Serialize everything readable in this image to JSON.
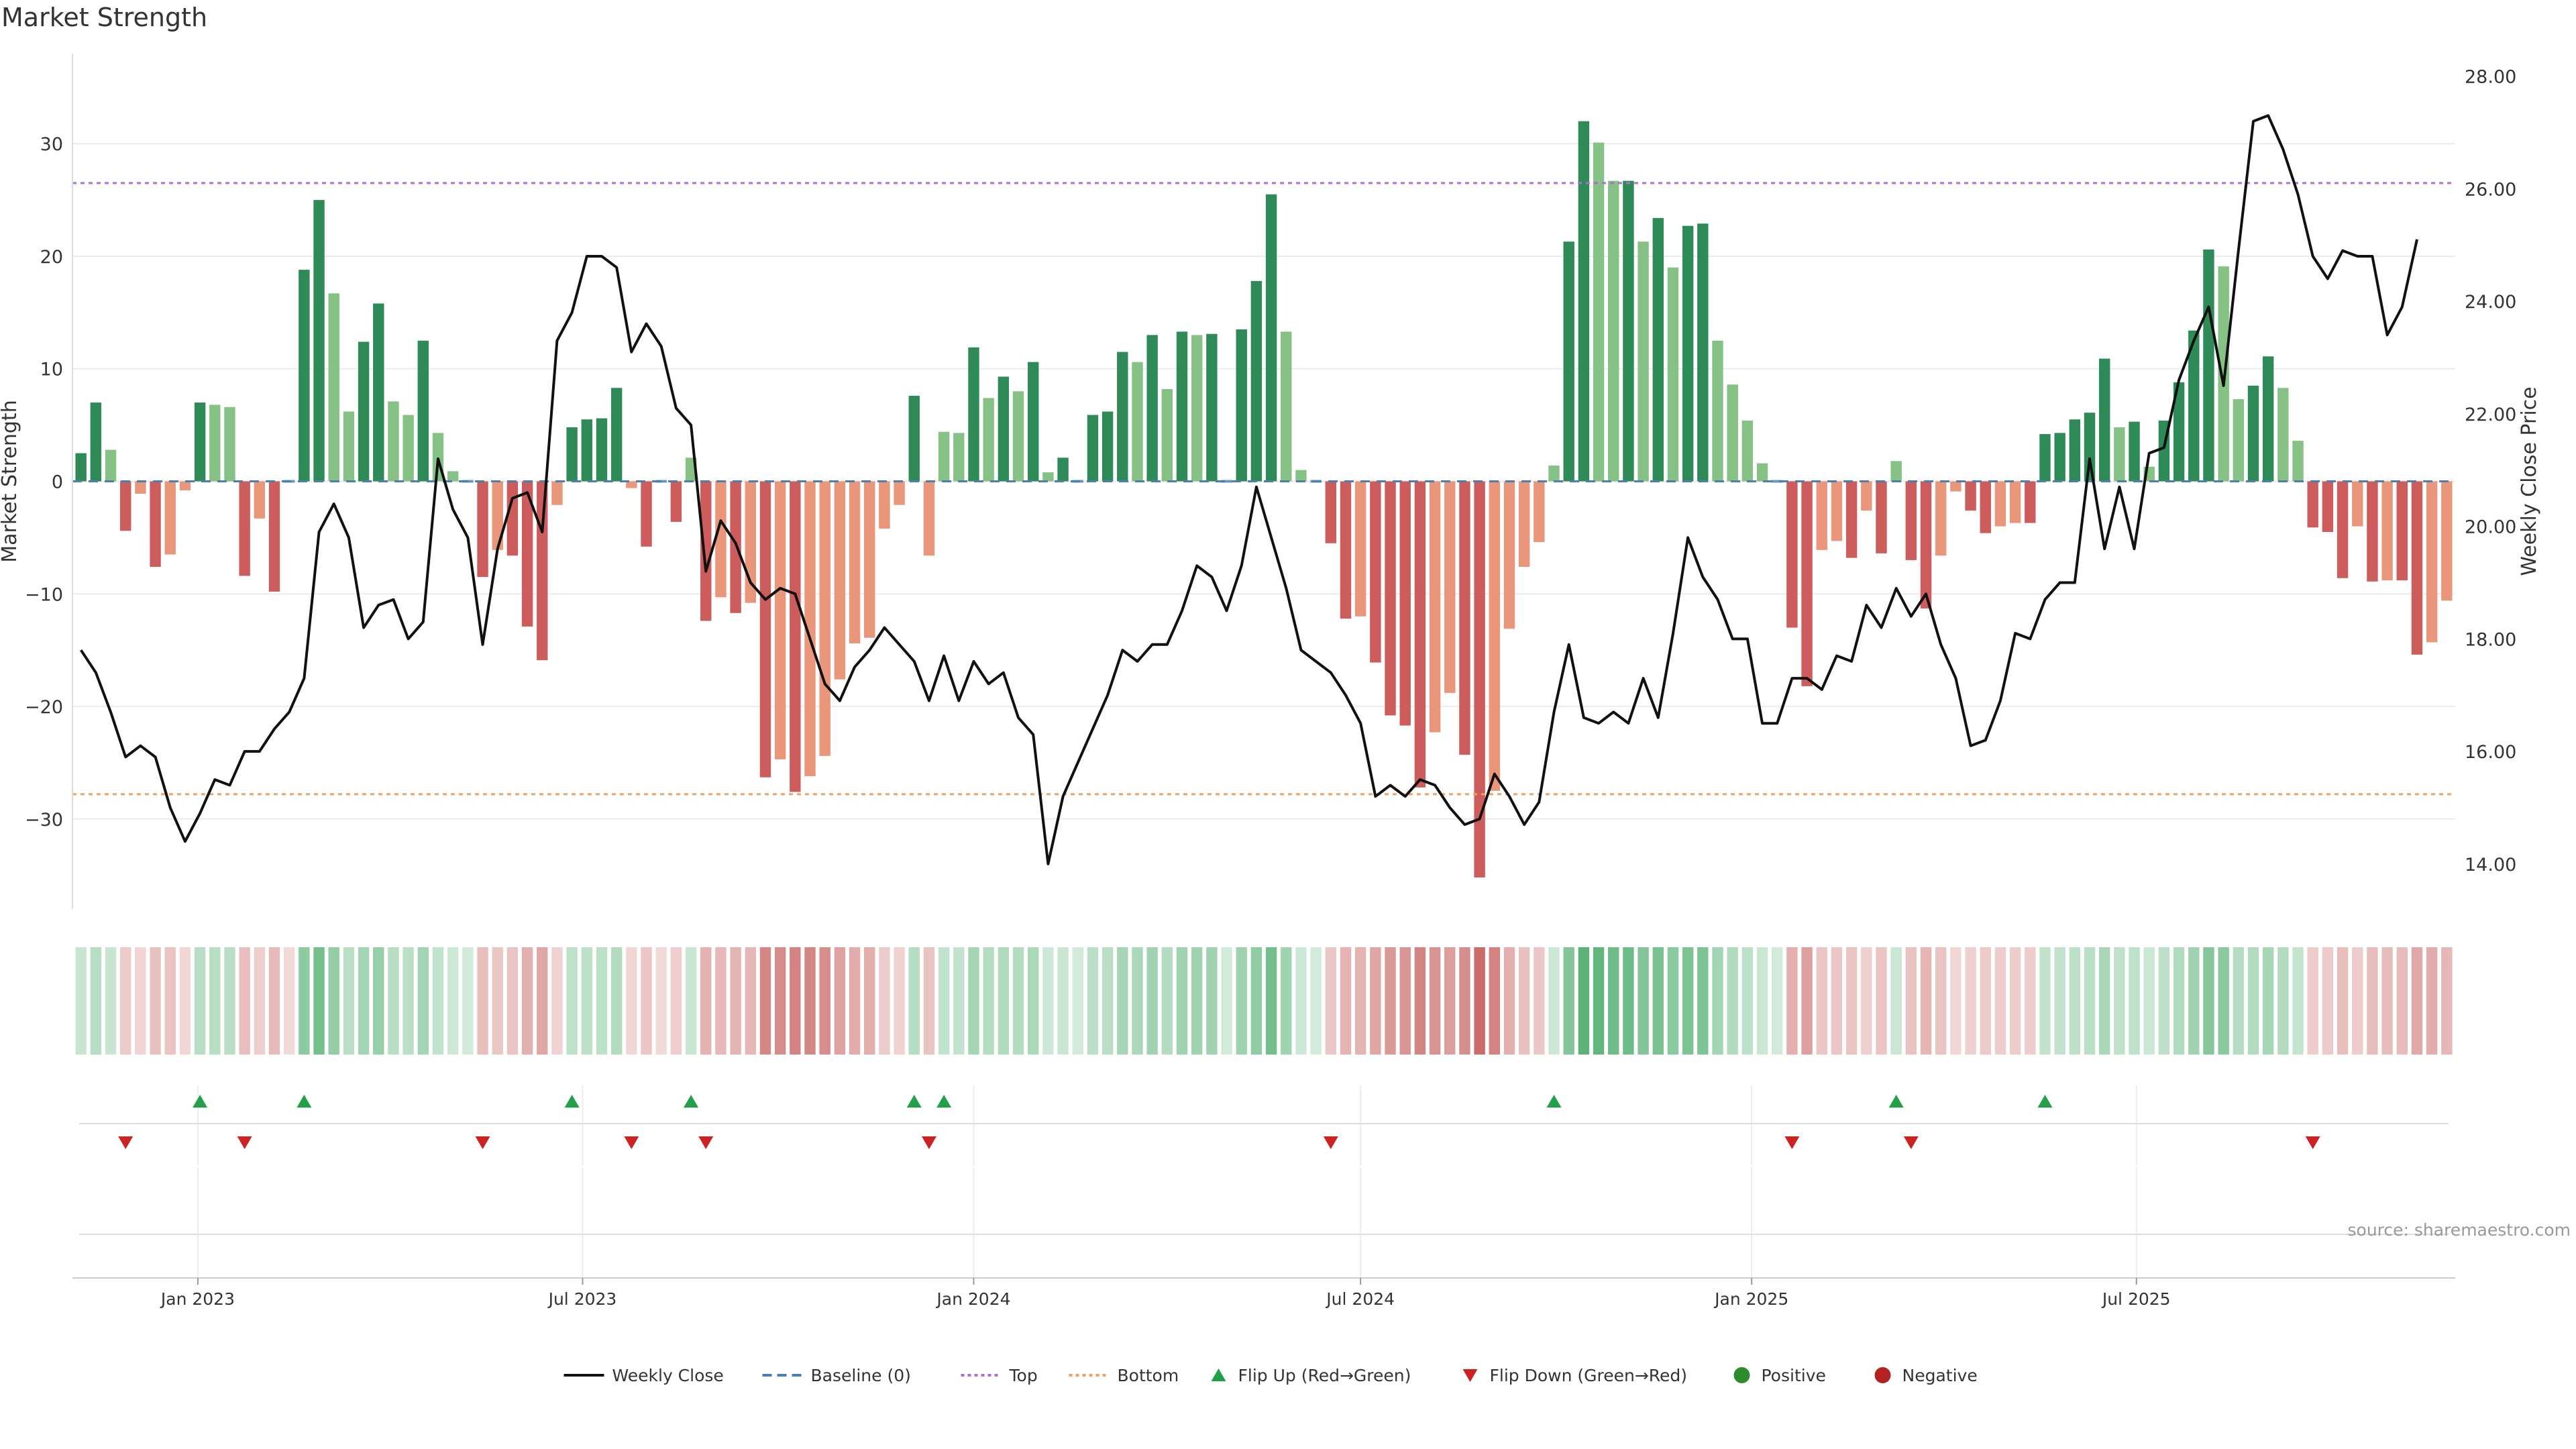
{
  "chart_data": {
    "type": "bar",
    "title": "Market Strength",
    "ylabel": "Market Strength",
    "y2label": "Weekly Close Price",
    "ylim": [
      -38,
      38
    ],
    "y2lim": [
      13.2,
      28.4
    ],
    "yticks": [
      30,
      20,
      10,
      0,
      -10,
      -20,
      -30
    ],
    "y2ticks": [
      "28.00",
      "26.00",
      "24.00",
      "22.00",
      "20.00",
      "18.00",
      "16.00",
      "14.00"
    ],
    "xticks": [
      "Jan 2023",
      "Jul 2023",
      "Jan 2024",
      "Jul 2024",
      "Jan 2025",
      "Jul 2025"
    ],
    "xtick_dates": [
      "2023-01-01",
      "2023-07-01",
      "2024-01-01",
      "2024-07-01",
      "2025-01-01",
      "2025-07-01"
    ],
    "start_date": "2022-11-07",
    "top_line": 26.5,
    "bottom_line": -27.8,
    "strength": [
      2.5,
      7,
      2.8,
      -4.4,
      -1.1,
      -7.6,
      -6.5,
      -0.8,
      7,
      6.8,
      6.6,
      -8.4,
      -3.3,
      -9.8,
      0,
      18.8,
      25,
      16.7,
      6.2,
      12.4,
      15.8,
      7.1,
      5.9,
      12.5,
      4.3,
      0.9,
      0,
      -8.5,
      -6.1,
      -6.6,
      -12.9,
      -15.9,
      -2.1,
      4.8,
      5.5,
      5.6,
      8.3,
      -0.6,
      -5.8,
      0,
      -3.6,
      2.1,
      -12.4,
      -10.3,
      -11.7,
      -10.8,
      -26.3,
      -24.7,
      -27.6,
      -26.2,
      -24.4,
      -17.6,
      -14.4,
      -13.9,
      -4.2,
      -2.1,
      7.6,
      -6.6,
      4.4,
      4.3,
      11.9,
      7.4,
      9.3,
      8,
      10.6,
      0.8,
      2.1,
      0,
      5.9,
      6.2,
      11.5,
      10.6,
      13,
      8.2,
      13.3,
      13,
      13.1,
      0,
      13.5,
      17.8,
      25.5,
      13.3,
      1,
      0,
      -5.5,
      -12.2,
      -12,
      -16.1,
      -20.8,
      -21.7,
      -27.2,
      -22.3,
      -18.8,
      -24.3,
      -35.2,
      -27.5,
      -13.1,
      -7.6,
      -5.4,
      1.4,
      21.3,
      32,
      30.1,
      26.7,
      26.7,
      21.3,
      23.4,
      19,
      22.7,
      22.9,
      12.5,
      8.6,
      5.4,
      1.6,
      0,
      -13,
      -18.2,
      -6.1,
      -5.3,
      -6.8,
      -2.6,
      -6.4,
      1.8,
      -7,
      -11.3,
      -6.6,
      -0.9,
      -2.6,
      -4.6,
      -4,
      -3.7,
      -3.7,
      4.2,
      4.3,
      5.5,
      6.1,
      10.9,
      4.8,
      5.3,
      1.3,
      5.4,
      8.8,
      13.4,
      20.6,
      19.1,
      7.3,
      8.5,
      11.1,
      8.3,
      3.6,
      -4.1,
      -4.5,
      -8.6,
      -4,
      -8.9,
      -8.8,
      -8.8,
      -15.4,
      -14.3,
      -10.6
    ],
    "price": [
      17.8,
      17.4,
      16.7,
      15.9,
      16.1,
      15.9,
      15.0,
      14.4,
      14.9,
      15.5,
      15.4,
      16.0,
      16.0,
      16.4,
      16.7,
      17.3,
      19.9,
      20.4,
      19.8,
      18.2,
      18.6,
      18.7,
      18.0,
      18.3,
      21.2,
      20.3,
      19.8,
      17.9,
      19.6,
      20.5,
      20.6,
      19.9,
      23.3,
      23.8,
      24.8,
      24.8,
      24.6,
      23.1,
      23.6,
      23.2,
      22.1,
      21.8,
      19.2,
      20.1,
      19.7,
      19.0,
      18.7,
      18.9,
      18.8,
      18.0,
      17.2,
      16.9,
      17.5,
      17.8,
      18.2,
      17.9,
      17.6,
      16.9,
      17.7,
      16.9,
      17.6,
      17.2,
      17.4,
      16.6,
      16.3,
      14.0,
      15.2,
      15.8,
      16.4,
      17.0,
      17.8,
      17.6,
      17.9,
      17.9,
      18.5,
      19.3,
      19.1,
      18.5,
      19.3,
      20.7,
      19.8,
      18.9,
      17.8,
      17.6,
      17.4,
      17.0,
      16.5,
      15.2,
      15.4,
      15.2,
      15.5,
      15.4,
      15.0,
      14.7,
      14.8,
      15.6,
      15.2,
      14.7,
      15.1,
      16.7,
      17.9,
      16.6,
      16.5,
      16.7,
      16.5,
      17.3,
      16.6,
      18.1,
      19.8,
      19.1,
      18.7,
      18.0,
      18.0,
      16.5,
      16.5,
      17.3,
      17.3,
      17.1,
      17.7,
      17.6,
      18.6,
      18.2,
      18.9,
      18.4,
      18.8,
      17.9,
      17.3,
      16.1,
      16.2,
      16.9,
      18.1,
      18.0,
      18.7,
      19.0,
      19.0,
      21.2,
      19.6,
      20.7,
      19.6,
      21.3,
      21.4,
      22.6,
      23.3,
      23.9,
      22.5,
      24.9,
      27.2,
      27.3,
      26.7,
      25.9,
      24.8,
      24.4,
      24.9,
      24.8,
      24.8,
      23.4,
      23.9,
      25.1
    ],
    "series": [
      {
        "name": "Weekly Close"
      },
      {
        "name": "Baseline (0)"
      },
      {
        "name": "Top"
      },
      {
        "name": "Bottom"
      },
      {
        "name": "Flip Up (Red→Green)"
      },
      {
        "name": "Flip Down (Green→Red)"
      },
      {
        "name": "Positive"
      },
      {
        "name": "Negative"
      }
    ],
    "legend_position": "bottom-center",
    "colors": {
      "strong_positive": "#2e8b57",
      "weak_positive": "#86c185",
      "strong_negative": "#cd5c5c",
      "weak_negative": "#e9967a",
      "price_line": "#111111",
      "top_line": "#b070d0",
      "bottom_line": "#f0a060",
      "baseline": "#4a7fb0",
      "flip_up": "#22a04a",
      "flip_down": "#cc2222"
    },
    "source": "source: sharemaestro.com"
  }
}
